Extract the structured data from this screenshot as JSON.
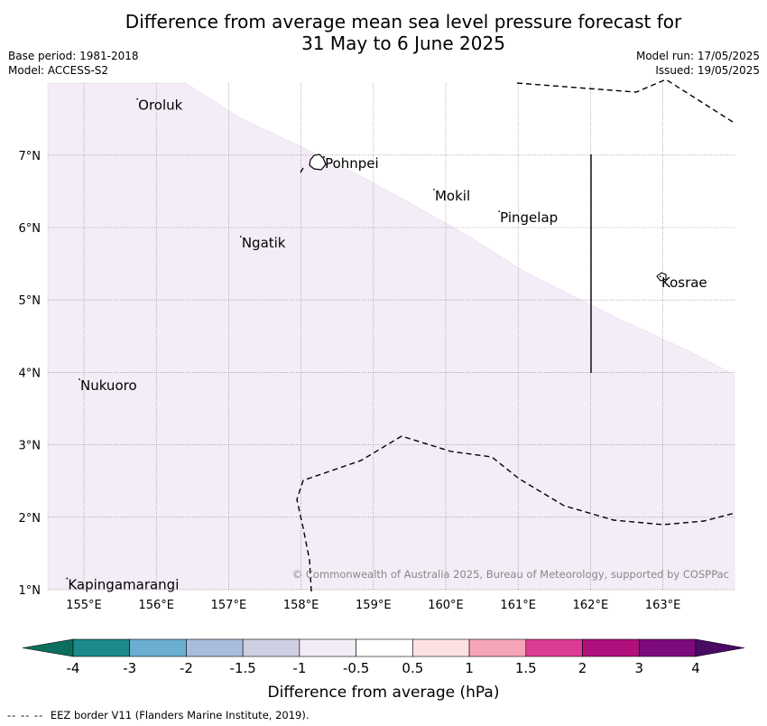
{
  "title_line1": "Difference from average mean sea level pressure forecast for",
  "title_line2": "31 May to 6 June 2025",
  "base_period": "Base period: 1981-2018",
  "model": "Model: ACCESS-S2",
  "model_run": "Model run: 17/05/2025",
  "issued": "Issued: 19/05/2025",
  "copyright": "© Commonwealth of Australia 2025, Bureau of Meteorology, supported by COSPPac",
  "lon_ticks": [
    "155°E",
    "156°E",
    "157°E",
    "158°E",
    "159°E",
    "160°E",
    "161°E",
    "162°E",
    "163°E"
  ],
  "lat_ticks": [
    "1°N",
    "2°N",
    "3°N",
    "4°N",
    "5°N",
    "6°N",
    "7°N"
  ],
  "places": [
    {
      "name": "Oroluk",
      "lon": 155.75,
      "lat": 7.7
    },
    {
      "name": "Pohnpei",
      "lon": 158.33,
      "lat": 6.9
    },
    {
      "name": "Mokil",
      "lon": 159.85,
      "lat": 6.45
    },
    {
      "name": "Pingelap",
      "lon": 160.75,
      "lat": 6.15
    },
    {
      "name": "Ngatik",
      "lon": 157.18,
      "lat": 5.8
    },
    {
      "name": "Kosrae",
      "lon": 162.98,
      "lat": 5.25
    },
    {
      "name": "Nukuoro",
      "lon": 154.95,
      "lat": 3.83
    },
    {
      "name": "Kapingamarangi",
      "lon": 154.78,
      "lat": 1.08
    }
  ],
  "colorbar": {
    "label": "Difference from average (hPa)",
    "ticks": [
      "-4",
      "-3",
      "-2",
      "-1.5",
      "-1",
      "-0.5",
      "0.5",
      "1",
      "1.5",
      "2",
      "3",
      "4"
    ],
    "colors": [
      "#1a8a8a",
      "#6aaed0",
      "#a8bcdc",
      "#d0d0e4",
      "#f4ecf6",
      "#ffffff",
      "#fde0e0",
      "#f6a4b8",
      "#dc3c96",
      "#b0107c",
      "#7c0a7c"
    ],
    "low_extend_color": "#0c6e5e",
    "high_extend_color": "#4a0a64"
  },
  "footer_dash": "-- -- --",
  "footer_text": "EEZ border V11 (Flanders Marine Institute, 2019)."
}
